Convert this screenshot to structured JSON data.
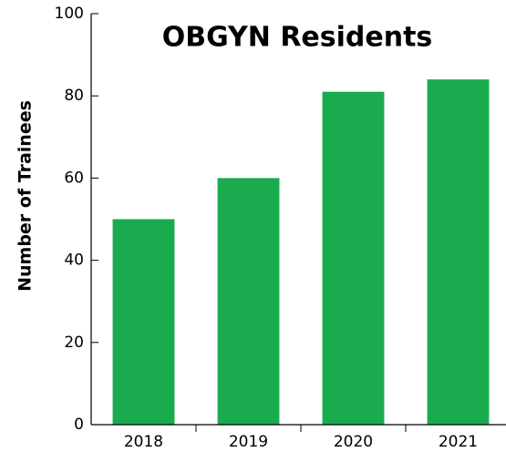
{
  "chart_data": {
    "type": "bar",
    "title": "OBGYN Residents",
    "ylabel": "Number of Trainees",
    "categories": [
      "2018",
      "2019",
      "2020",
      "2021"
    ],
    "values": [
      50,
      60,
      81,
      84
    ],
    "color": "#1aab4f",
    "ylim": [
      0,
      100
    ],
    "yticks": [
      0,
      20,
      40,
      60,
      80,
      100
    ],
    "grid": false
  }
}
